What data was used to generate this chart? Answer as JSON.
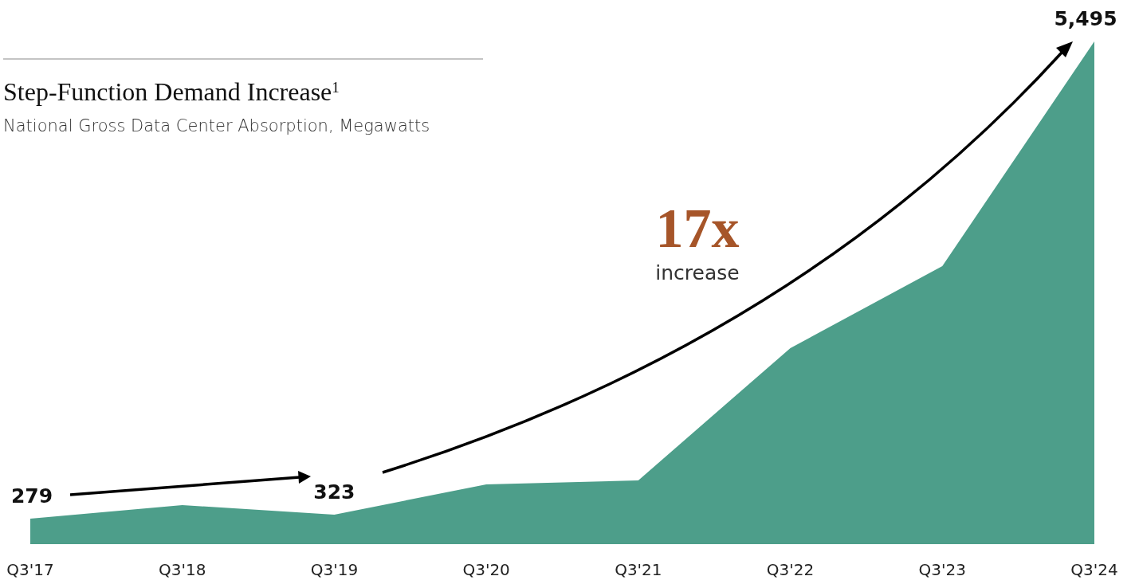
{
  "chart_data": {
    "type": "area",
    "title": "Step-Function Demand Increase$^{1}$",
    "subtitle": "National Gross Data Center Absorption, Megawatts",
    "categories": [
      "Q3'17",
      "Q3'18",
      "Q3'19",
      "Q3'20",
      "Q3'21",
      "Q3'22",
      "Q3'23",
      "Q3'24"
    ],
    "values": [
      279,
      427,
      323,
      653,
      697,
      2143,
      3040,
      5495
    ],
    "value_labels": [
      "279",
      null,
      "323",
      null,
      null,
      null,
      null,
      "5,495"
    ],
    "color": "#4d9e8a",
    "annotations": [
      "17x",
      "increase"
    ]
  }
}
